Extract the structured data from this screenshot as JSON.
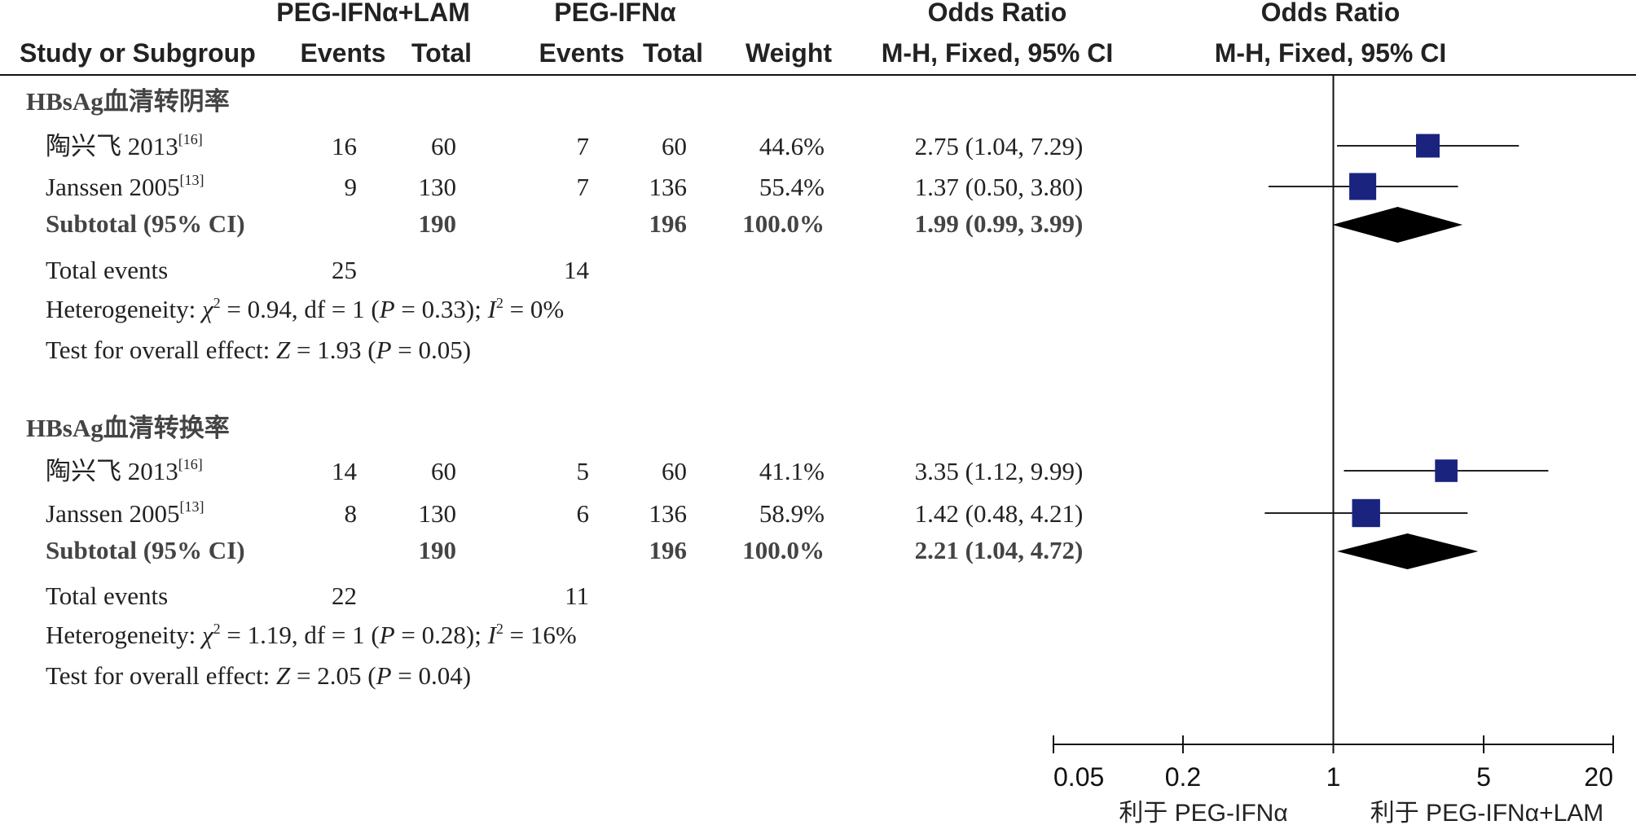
{
  "headers": {
    "col_study": "Study or Subgroup",
    "group1": "PEG-IFNα+LAM",
    "group2": "PEG-IFNα",
    "events": "Events",
    "total": "Total",
    "weight": "Weight",
    "or_title": "Odds Ratio",
    "or_method": "M-H, Fixed, 95% CI",
    "plot_title": "Odds Ratio",
    "plot_method": "M-H, Fixed, 95% CI"
  },
  "chart_data": {
    "type": "forest",
    "axis": {
      "scale": "log",
      "range": [
        0.05,
        20
      ],
      "ticks": [
        0.05,
        0.2,
        1,
        5,
        20
      ],
      "tick_labels": [
        "0.05",
        "0.2",
        "1",
        "5",
        "20"
      ],
      "reference_line": 1,
      "favors_left": "利于 PEG-IFNα",
      "favors_right": "利于 PEG-IFNα+LAM"
    },
    "marker_color": "#1a237e",
    "groups": [
      {
        "title": "HBsAg血清转阴率",
        "studies": [
          {
            "name": "陶兴飞 2013",
            "ref": "[16]",
            "e1": "16",
            "t1": "60",
            "e2": "7",
            "t2": "60",
            "weight": "44.6%",
            "or_text": "2.75 (1.04, 7.29)",
            "or": 2.75,
            "lo": 1.04,
            "hi": 7.29
          },
          {
            "name": "Janssen 2005",
            "ref": "[13]",
            "e1": "9",
            "t1": "130",
            "e2": "7",
            "t2": "136",
            "weight": "55.4%",
            "or_text": "1.37 (0.50, 3.80)",
            "or": 1.37,
            "lo": 0.5,
            "hi": 3.8
          }
        ],
        "subtotal": {
          "label": "Subtotal (95% CI)",
          "t1": "190",
          "t2": "196",
          "weight": "100.0%",
          "or_text": "1.99 (0.99, 3.99)",
          "or": 1.99,
          "lo": 0.99,
          "hi": 3.99
        },
        "total_events": {
          "label": "Total events",
          "e1": "25",
          "e2": "14"
        },
        "heterogeneity": {
          "prefix": "Heterogeneity: ",
          "chi_sym": "χ",
          "chi_rest": " = 0.94, df = 1 (",
          "p_sym": "P",
          "p_rest": " = 0.33); ",
          "i_sym": "I",
          "i_rest": " = 0%"
        },
        "overall": {
          "prefix": "Test for overall effect: ",
          "z_sym": "Z",
          "z_rest": " = 1.93 (",
          "p_sym": "P",
          "p_rest": " = 0.05)"
        }
      },
      {
        "title": "HBsAg血清转换率",
        "studies": [
          {
            "name": "陶兴飞 2013",
            "ref": "[16]",
            "e1": "14",
            "t1": "60",
            "e2": "5",
            "t2": "60",
            "weight": "41.1%",
            "or_text": "3.35 (1.12, 9.99)",
            "or": 3.35,
            "lo": 1.12,
            "hi": 9.99
          },
          {
            "name": "Janssen 2005",
            "ref": "[13]",
            "e1": "8",
            "t1": "130",
            "e2": "6",
            "t2": "136",
            "weight": "58.9%",
            "or_text": "1.42 (0.48, 4.21)",
            "or": 1.42,
            "lo": 0.48,
            "hi": 4.21
          }
        ],
        "subtotal": {
          "label": "Subtotal (95% CI)",
          "t1": "190",
          "t2": "196",
          "weight": "100.0%",
          "or_text": "2.21 (1.04, 4.72)",
          "or": 2.21,
          "lo": 1.04,
          "hi": 4.72
        },
        "total_events": {
          "label": "Total events",
          "e1": "22",
          "e2": "11"
        },
        "heterogeneity": {
          "prefix": "Heterogeneity: ",
          "chi_sym": "χ",
          "chi_rest": " = 1.19, df = 1 (",
          "p_sym": "P",
          "p_rest": " = 0.28); ",
          "i_sym": "I",
          "i_rest": " = 16%"
        },
        "overall": {
          "prefix": "Test for overall effect: ",
          "z_sym": "Z",
          "z_rest": " = 2.05 (",
          "p_sym": "P",
          "p_rest": " = 0.04)"
        }
      }
    ]
  }
}
